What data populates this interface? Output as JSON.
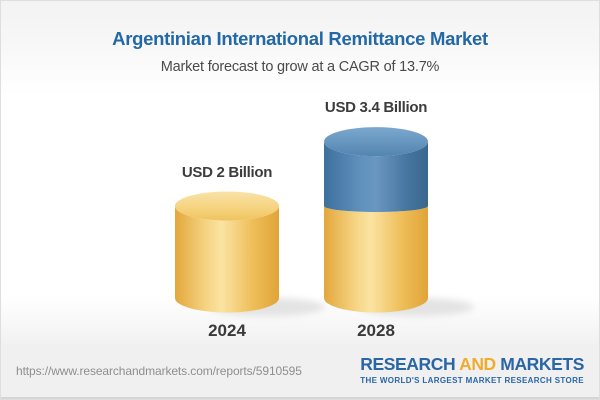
{
  "header": {
    "title": "Argentinian International Remittance Market",
    "subtitle": "Market forecast to grow at a CAGR of 13.7%"
  },
  "chart_data": {
    "type": "bar",
    "style": "3d-stacked-cylinder",
    "title": "Argentinian International Remittance Market",
    "subtitle": "Market forecast to grow at a CAGR of 13.7%",
    "unit": "USD Billion",
    "cagr_percent": 13.7,
    "categories": [
      "2024",
      "2028"
    ],
    "totals": [
      2.0,
      3.4
    ],
    "bar_labels": [
      "USD 2 Billion",
      "USD 3.4 Billion"
    ],
    "series": [
      {
        "name": "base",
        "values": [
          2.0,
          2.0
        ],
        "color": "#EFC25F"
      },
      {
        "name": "growth",
        "values": [
          0,
          1.4
        ],
        "color": "#4C7FAC"
      }
    ],
    "axes": "none",
    "grid": false,
    "legend": false,
    "ylim": [
      0,
      3.8
    ],
    "cylinder_styles": [
      {
        "body": [
          [
            0,
            "#E3A73C"
          ],
          [
            0.3,
            "#F6D483"
          ],
          [
            0.45,
            "#FBE3A2"
          ],
          [
            0.75,
            "#EEBE58"
          ],
          [
            1,
            "#E0A438"
          ]
        ],
        "top": [
          [
            0,
            "#FAE3A8"
          ],
          [
            0.7,
            "#F4CF75"
          ],
          [
            1,
            "#EFC35F"
          ]
        ]
      },
      {
        "body": [
          [
            0,
            "#3E709E"
          ],
          [
            0.35,
            "#6091BD"
          ],
          [
            0.5,
            "#6997C1"
          ],
          [
            0.8,
            "#46759F"
          ],
          [
            1,
            "#3A678E"
          ]
        ],
        "top": [
          [
            0,
            "#7CA8CE"
          ],
          [
            1,
            "#5385B0"
          ]
        ]
      }
    ]
  },
  "footer": {
    "url": "https://www.researchandmarkets.com/reports/5910595",
    "logo": {
      "word1": "RESEARCH",
      "word2": "AND",
      "word3": "MARKETS",
      "tagline": "THE WORLD'S LARGEST MARKET RESEARCH STORE"
    }
  },
  "colors": {
    "title_blue": "#2368A7",
    "label_dark": "#3C3C3C",
    "url_gray": "#8E8E8E",
    "logo_blue": "#2A66A5",
    "logo_yellow": "#F0AC2F",
    "footer_bg": "#F0F0F0",
    "cylinder_yellow": "#EFC25F",
    "cylinder_blue": "#4C7FAC"
  }
}
